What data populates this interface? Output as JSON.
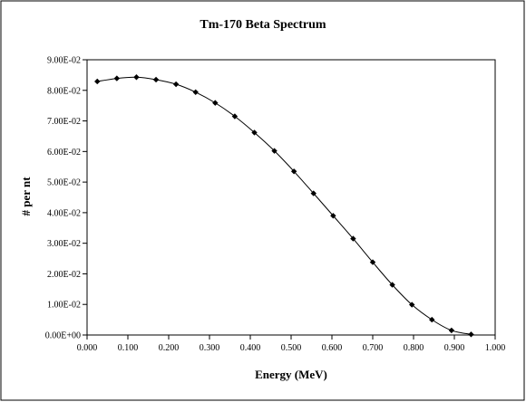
{
  "chart_data": {
    "type": "scatter",
    "title": "Tm-170 Beta Spectrum",
    "xlabel": "Energy (MeV)",
    "ylabel": "# per nt",
    "xlim": [
      0.0,
      1.0
    ],
    "ylim": [
      0.0,
      0.09
    ],
    "x_ticks": [
      "0.000",
      "0.100",
      "0.200",
      "0.300",
      "0.400",
      "0.500",
      "0.600",
      "0.700",
      "0.800",
      "0.900",
      "1.000"
    ],
    "y_ticks": [
      "0.00E+00",
      "1.00E-02",
      "2.00E-02",
      "3.00E-02",
      "4.00E-02",
      "5.00E-02",
      "6.00E-02",
      "7.00E-02",
      "8.00E-02",
      "9.00E-02"
    ],
    "grid": false,
    "legend": "none",
    "marker": "diamond",
    "line": "smooth",
    "colors": {
      "series": "#000000",
      "frame": "#000000",
      "background": "#ffffff"
    },
    "series": [
      {
        "x": [
          0.025,
          0.073,
          0.121,
          0.169,
          0.218,
          0.266,
          0.314,
          0.362,
          0.41,
          0.459,
          0.507,
          0.555,
          0.603,
          0.652,
          0.7,
          0.748,
          0.796,
          0.845,
          0.893,
          0.941
        ],
        "y": [
          0.0829,
          0.0839,
          0.0843,
          0.0835,
          0.082,
          0.0794,
          0.0759,
          0.0715,
          0.0662,
          0.0602,
          0.0535,
          0.0463,
          0.039,
          0.0315,
          0.0238,
          0.0164,
          0.0099,
          0.005,
          0.0015,
          0.0002
        ]
      }
    ]
  }
}
